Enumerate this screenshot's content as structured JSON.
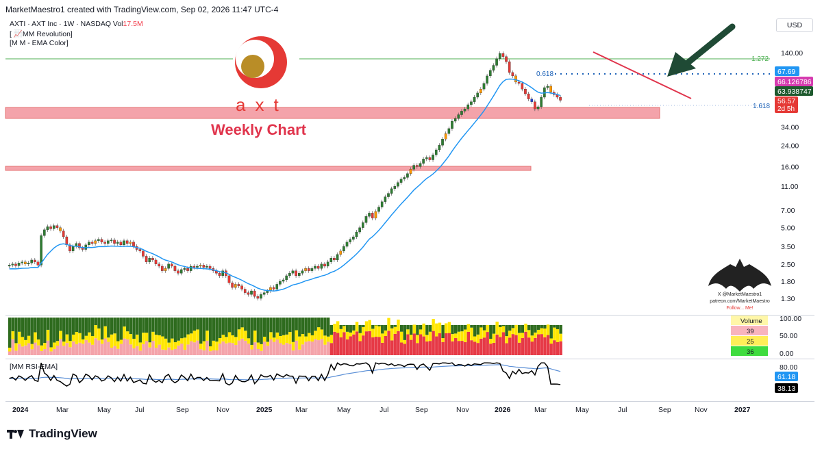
{
  "header": "MarketMaestro1 created with TradingView.com, Sep 02, 2026 11:47 UTC-4",
  "symbol_line": "AXTI · AXT Inc · 1W · NASDAQ",
  "vol_label": "Vol",
  "vol_value": "17.5M",
  "indicator1": "[ 📈MM Revolution]",
  "indicator2": "[M M - EMA Color]",
  "currency": "USD",
  "logo_text": "axt",
  "chart_title": "Weekly Chart",
  "fib": {
    "f1272": "1.272",
    "f0618": "0.618",
    "f1618": "1.618"
  },
  "price_tags": {
    "a": "67.69",
    "b": "66.126786",
    "c": "63.938747",
    "d": "56.57",
    "countdown": "2d 5h"
  },
  "watermark": {
    "line1": "X @MarketMaestro1",
    "line2": "patreon.com/MarketMaestro",
    "line3": "Follow... Me!"
  },
  "volume_panel": {
    "label": "Volume",
    "v1": "39",
    "v2": "25",
    "v3": "36",
    "axis": [
      "100.00",
      "50.00",
      "0.00"
    ]
  },
  "rsi_panel": {
    "label": "[MM RSI-EMA]",
    "axis_top": "80.00",
    "ema_value": "61.18",
    "rsi_value": "38.13"
  },
  "time_axis": [
    "2024",
    "Mar",
    "May",
    "Jul",
    "Sep",
    "Nov",
    "2025",
    "Mar",
    "May",
    "Jul",
    "Sep",
    "Nov",
    "2026",
    "Mar",
    "May",
    "Jul",
    "Sep",
    "Nov",
    "2027"
  ],
  "brand": "TradingView",
  "colors": {
    "up": "#2e7d32",
    "down": "#e53935",
    "ema": "#2196f3",
    "band": "#f4a3aa",
    "trend": "#e0344c",
    "arrow": "#1f4a35",
    "fib": "#4caf50"
  },
  "chart_data": {
    "type": "candlestick",
    "y_scale": "log",
    "y_ticks": [
      1.3,
      1.8,
      2.5,
      3.5,
      5.0,
      7.0,
      11.0,
      16.0,
      24.0,
      34.0,
      140.0
    ],
    "price_lines": {
      "fib_1272": 96,
      "fib_0618": 67.69,
      "fib_1618": 42
    },
    "zones": [
      {
        "low": 39,
        "high": 45
      },
      {
        "low": 15.2,
        "high": 15.9
      }
    ],
    "trendline": {
      "from": [
        147,
        140
      ],
      "to": [
        221,
        62
      ]
    },
    "x_labels": [
      "2024",
      "Mar",
      "May",
      "Jul",
      "Sep",
      "Nov",
      "2025",
      "Mar",
      "May",
      "Jul",
      "Sep",
      "Nov",
      "2026",
      "Mar",
      "May",
      "Jul",
      "Sep",
      "Nov",
      "2027"
    ],
    "weeks": 232,
    "closes": [
      2.45,
      2.5,
      2.42,
      2.55,
      2.6,
      2.5,
      2.55,
      2.7,
      2.6,
      2.45,
      4.3,
      4.8,
      5.1,
      4.9,
      5.2,
      5.0,
      4.7,
      4.2,
      3.6,
      3.2,
      3.5,
      3.7,
      3.4,
      3.3,
      3.6,
      3.8,
      3.7,
      3.9,
      4.0,
      3.8,
      3.7,
      3.9,
      3.95,
      3.7,
      3.8,
      3.6,
      3.9,
      3.7,
      3.8,
      3.5,
      3.3,
      3.2,
      2.9,
      2.6,
      2.8,
      2.7,
      2.5,
      2.4,
      2.2,
      2.3,
      2.5,
      2.4,
      2.2,
      2.1,
      2.25,
      2.3,
      2.2,
      2.4,
      2.35,
      2.4,
      2.45,
      2.35,
      2.4,
      2.3,
      2.2,
      2.1,
      2.0,
      2.2,
      2.0,
      1.75,
      1.6,
      1.7,
      1.65,
      1.55,
      1.45,
      1.4,
      1.5,
      1.35,
      1.3,
      1.4,
      1.45,
      1.5,
      1.6,
      1.55,
      1.7,
      1.8,
      1.85,
      2.0,
      2.1,
      2.2,
      2.0,
      2.1,
      2.2,
      2.3,
      2.2,
      2.3,
      2.4,
      2.3,
      2.5,
      2.4,
      2.6,
      2.8,
      2.7,
      3.0,
      3.2,
      3.5,
      3.8,
      4.0,
      4.2,
      4.6,
      5.0,
      5.5,
      6.2,
      6.6,
      6.0,
      6.8,
      7.4,
      8.2,
      9.0,
      9.6,
      10.5,
      11.0,
      11.8,
      12.6,
      13.0,
      14.0,
      15.2,
      16.4,
      16.0,
      17.0,
      18.5,
      19.0,
      18.2,
      20.0,
      22.0,
      24.0,
      27.0,
      30.0,
      33.0,
      38.0,
      40.0,
      43.0,
      46.0,
      48.0,
      52.0,
      55.0,
      60.0,
      65.0,
      70.0,
      78.0,
      90.0,
      100.0,
      110.0,
      125.0,
      138.0,
      130.0,
      118.0,
      96.0,
      90.0,
      80.0,
      78.0,
      70.0,
      64.0,
      58.0,
      55.0,
      48.0,
      50.0,
      60.0,
      72.0,
      74.0,
      66.0,
      63.0,
      60.0,
      56.57
    ],
    "volume_pct_last": {
      "red": 39,
      "yellow": 25,
      "green": 36
    },
    "rsi_last": 38.13,
    "rsi_ema_last": 61.18
  }
}
